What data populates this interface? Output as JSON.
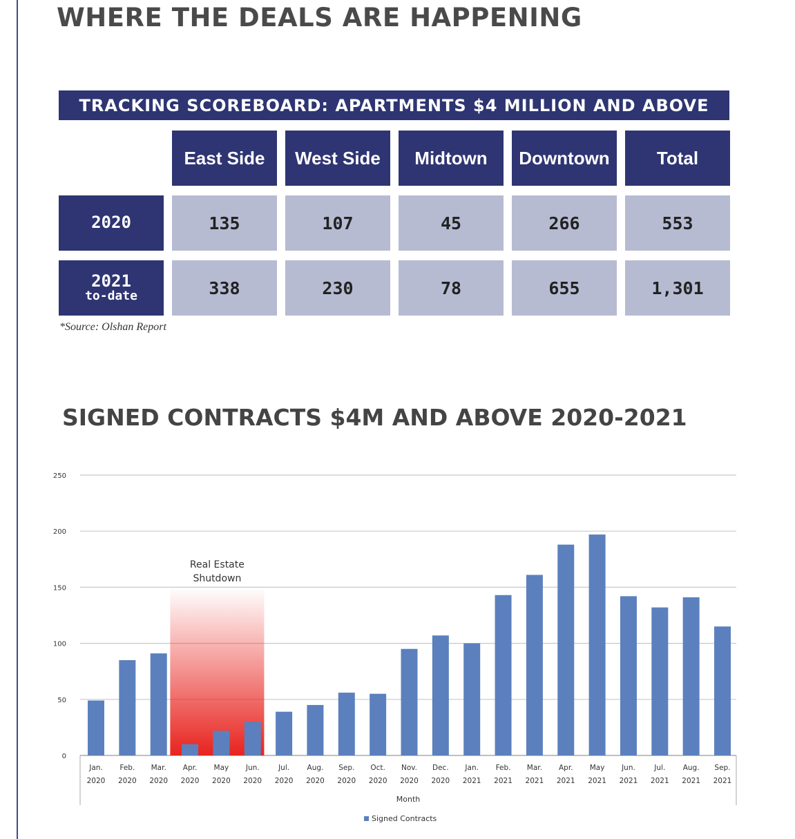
{
  "headline": "WHERE THE DEALS ARE HAPPENING",
  "scoreboard": {
    "title": "TRACKING SCOREBOARD: APARTMENTS $4 MILLION AND ABOVE",
    "columns": [
      "East Side",
      "West Side",
      "Midtown",
      "Downtown",
      "Total"
    ],
    "rows": [
      {
        "year": "2020",
        "sub": "",
        "values": [
          "135",
          "107",
          "45",
          "266",
          "553"
        ]
      },
      {
        "year": "2021",
        "sub": "to-date",
        "values": [
          "338",
          "230",
          "78",
          "655",
          "1,301"
        ]
      }
    ],
    "source": "*Source: Olshan Report"
  },
  "chart_title": "SIGNED CONTRACTS $4M AND ABOVE 2020-2021",
  "chart_data": {
    "type": "bar",
    "categories": [
      [
        "Jan.",
        "2020"
      ],
      [
        "Feb.",
        "2020"
      ],
      [
        "Mar.",
        "2020"
      ],
      [
        "Apr.",
        "2020"
      ],
      [
        "May",
        "2020"
      ],
      [
        "Jun.",
        "2020"
      ],
      [
        "Jul.",
        "2020"
      ],
      [
        "Aug.",
        "2020"
      ],
      [
        "Sep.",
        "2020"
      ],
      [
        "Oct.",
        "2020"
      ],
      [
        "Nov.",
        "2020"
      ],
      [
        "Dec.",
        "2020"
      ],
      [
        "Jan.",
        "2021"
      ],
      [
        "Feb.",
        "2021"
      ],
      [
        "Mar.",
        "2021"
      ],
      [
        "Apr.",
        "2021"
      ],
      [
        "May",
        "2021"
      ],
      [
        "Jun.",
        "2021"
      ],
      [
        "Jul.",
        "2021"
      ],
      [
        "Aug.",
        "2021"
      ],
      [
        "Sep.",
        "2021"
      ]
    ],
    "series": [
      {
        "name": "Signed Contracts",
        "values": [
          49,
          85,
          91,
          10,
          22,
          30,
          39,
          45,
          56,
          55,
          95,
          107,
          100,
          143,
          161,
          188,
          197,
          142,
          132,
          141,
          115
        ]
      }
    ],
    "xlabel": "Month",
    "ylabel": "",
    "ylim": [
      0,
      250
    ],
    "yticks": [
      0,
      50,
      100,
      150,
      200,
      250
    ],
    "annotation": {
      "lines": [
        "Real Estate",
        "Shutdown"
      ],
      "from_index": 3,
      "to_index": 5,
      "color": "#e8231e"
    },
    "bar_color": "#5b80bd",
    "legend": "bottom",
    "grid": true
  }
}
